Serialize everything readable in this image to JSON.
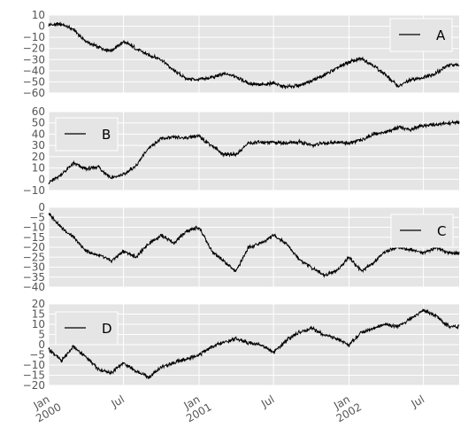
{
  "colors": {
    "panel_bg": "#e5e5e5",
    "grid": "#ffffff",
    "line": "#000000",
    "tick_text": "#555555"
  },
  "x_axis": {
    "start": "2000-01-01",
    "end": "2002-09-26",
    "major_ticks": [
      {
        "date": "2000-01-01",
        "label": "Jan",
        "year": "2000"
      },
      {
        "date": "2000-07-01",
        "label": "Jul",
        "year": ""
      },
      {
        "date": "2001-01-01",
        "label": "Jan",
        "year": "2001"
      },
      {
        "date": "2001-07-01",
        "label": "Jul",
        "year": ""
      },
      {
        "date": "2002-01-01",
        "label": "Jan",
        "year": "2002"
      },
      {
        "date": "2002-07-01",
        "label": "Jul",
        "year": ""
      }
    ]
  },
  "chart_data": [
    {
      "type": "line",
      "series": [
        {
          "name": "A",
          "x": [
            "2000-01-01",
            "2000-02-01",
            "2000-03-01",
            "2000-04-01",
            "2000-05-01",
            "2000-06-01",
            "2000-07-01",
            "2000-08-01",
            "2000-09-01",
            "2000-10-01",
            "2000-11-01",
            "2000-12-01",
            "2001-01-01",
            "2001-02-01",
            "2001-03-01",
            "2001-04-01",
            "2001-05-01",
            "2001-06-01",
            "2001-07-01",
            "2001-08-01",
            "2001-09-01",
            "2001-10-01",
            "2001-11-01",
            "2001-12-01",
            "2002-01-01",
            "2002-02-01",
            "2002-03-01",
            "2002-04-01",
            "2002-05-01",
            "2002-06-01",
            "2002-07-01",
            "2002-08-01",
            "2002-09-01"
          ],
          "values": [
            1,
            2,
            -3,
            -14,
            -19,
            -22,
            -14,
            -20,
            -26,
            -30,
            -40,
            -47,
            -48,
            -46,
            -43,
            -45,
            -51,
            -53,
            -51,
            -55,
            -53,
            -49,
            -44,
            -38,
            -32,
            -29,
            -35,
            -44,
            -54,
            -48,
            -46,
            -42,
            -35
          ]
        }
      ],
      "ylim": [
        -60,
        10
      ],
      "yticks": [
        10,
        0,
        -10,
        -20,
        -30,
        -40,
        -50,
        -60
      ],
      "legend": "top-right"
    },
    {
      "type": "line",
      "series": [
        {
          "name": "B",
          "x": [
            "2000-01-01",
            "2000-02-01",
            "2000-03-01",
            "2000-04-01",
            "2000-05-01",
            "2000-06-01",
            "2000-07-01",
            "2000-08-01",
            "2000-09-01",
            "2000-10-01",
            "2000-11-01",
            "2000-12-01",
            "2001-01-01",
            "2001-02-01",
            "2001-03-01",
            "2001-04-01",
            "2001-05-01",
            "2001-06-01",
            "2001-07-01",
            "2001-08-01",
            "2001-09-01",
            "2001-10-01",
            "2001-11-01",
            "2001-12-01",
            "2002-01-01",
            "2002-02-01",
            "2002-03-01",
            "2002-04-01",
            "2002-05-01",
            "2002-06-01",
            "2002-07-01",
            "2002-08-01",
            "2002-09-01"
          ],
          "values": [
            -3,
            4,
            14,
            9,
            11,
            1,
            4,
            12,
            28,
            36,
            37,
            37,
            38,
            30,
            22,
            22,
            32,
            33,
            33,
            32,
            33,
            30,
            32,
            33,
            32,
            35,
            40,
            42,
            46,
            44,
            48,
            48,
            50
          ]
        }
      ],
      "ylim": [
        -10,
        60
      ],
      "yticks": [
        60,
        50,
        40,
        30,
        20,
        10,
        0,
        -10
      ],
      "legend": "top-left"
    },
    {
      "type": "line",
      "series": [
        {
          "name": "C",
          "x": [
            "2000-01-01",
            "2000-02-01",
            "2000-03-01",
            "2000-04-01",
            "2000-05-01",
            "2000-06-01",
            "2000-07-01",
            "2000-08-01",
            "2000-09-01",
            "2000-10-01",
            "2000-11-01",
            "2000-12-01",
            "2001-01-01",
            "2001-02-01",
            "2001-03-01",
            "2001-04-01",
            "2001-05-01",
            "2001-06-01",
            "2001-07-01",
            "2001-08-01",
            "2001-09-01",
            "2001-10-01",
            "2001-11-01",
            "2001-12-01",
            "2002-01-01",
            "2002-02-01",
            "2002-03-01",
            "2002-04-01",
            "2002-05-01",
            "2002-06-01",
            "2002-07-01",
            "2002-08-01",
            "2002-09-01"
          ],
          "values": [
            -3,
            -10,
            -15,
            -22,
            -24,
            -27,
            -22,
            -25,
            -18,
            -14,
            -18,
            -12,
            -10,
            -22,
            -27,
            -32,
            -20,
            -18,
            -14,
            -18,
            -26,
            -30,
            -34,
            -32,
            -25,
            -32,
            -28,
            -22,
            -20,
            -21,
            -23,
            -20,
            -23
          ]
        }
      ],
      "ylim": [
        -40,
        0
      ],
      "yticks": [
        0,
        -5,
        -10,
        -15,
        -20,
        -25,
        -30,
        -35,
        -40
      ],
      "legend": "top-right"
    },
    {
      "type": "line",
      "series": [
        {
          "name": "D",
          "x": [
            "2000-01-01",
            "2000-02-01",
            "2000-03-01",
            "2000-04-01",
            "2000-05-01",
            "2000-06-01",
            "2000-07-01",
            "2000-08-01",
            "2000-09-01",
            "2000-10-01",
            "2000-11-01",
            "2000-12-01",
            "2001-01-01",
            "2001-02-01",
            "2001-03-01",
            "2001-04-01",
            "2001-05-01",
            "2001-06-01",
            "2001-07-01",
            "2001-08-01",
            "2001-09-01",
            "2001-10-01",
            "2001-11-01",
            "2001-12-01",
            "2002-01-01",
            "2002-02-01",
            "2002-03-01",
            "2002-04-01",
            "2002-05-01",
            "2002-06-01",
            "2002-07-01",
            "2002-08-01",
            "2002-09-01"
          ],
          "values": [
            -2,
            -8,
            -1,
            -6,
            -12,
            -14,
            -9,
            -13,
            -16,
            -11,
            -9,
            -7,
            -5,
            -1,
            1,
            3,
            1,
            0,
            -4,
            2,
            6,
            8,
            5,
            3,
            0,
            6,
            8,
            10,
            9,
            13,
            17,
            14,
            9
          ]
        }
      ],
      "ylim": [
        -20,
        20
      ],
      "yticks": [
        20,
        15,
        10,
        5,
        0,
        -5,
        -10,
        -15,
        -20
      ],
      "legend": "top-left"
    }
  ]
}
